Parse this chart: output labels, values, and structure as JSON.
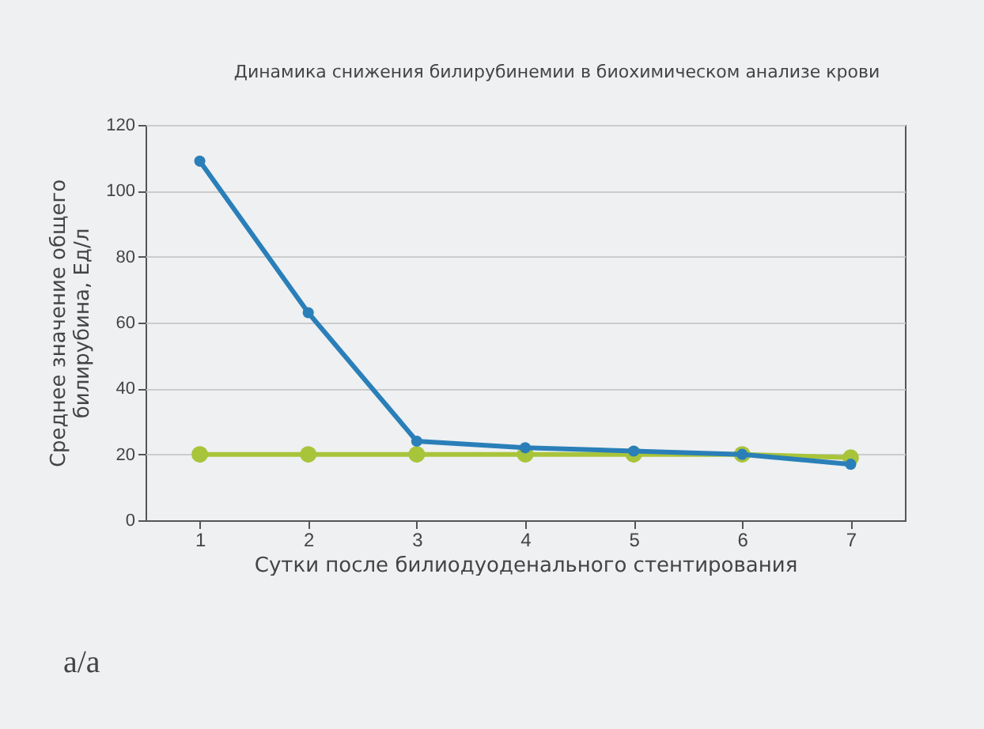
{
  "chart_data": {
    "type": "line",
    "title": "Динамика снижения билирубинемии в биохимическом анализе крови",
    "xlabel": "Сутки после билиодуоденального стентирования",
    "ylabel": "Среднее значение общего\nбилирубина, Ед/л",
    "categories": [
      "1",
      "2",
      "3",
      "4",
      "5",
      "6",
      "7"
    ],
    "series": [
      {
        "color": "#2a7fb8",
        "values": [
          109,
          63,
          24,
          22,
          21,
          20,
          17
        ]
      },
      {
        "color": "#a8c43a",
        "values": [
          20,
          20,
          20,
          20,
          20,
          20,
          19
        ]
      }
    ],
    "ylim": [
      0,
      120
    ],
    "yticks": [
      0,
      20,
      40,
      60,
      80,
      100,
      120
    ],
    "grid": "y",
    "marker": "circle",
    "line_style": "solid",
    "annotations": [
      "а/а"
    ]
  }
}
